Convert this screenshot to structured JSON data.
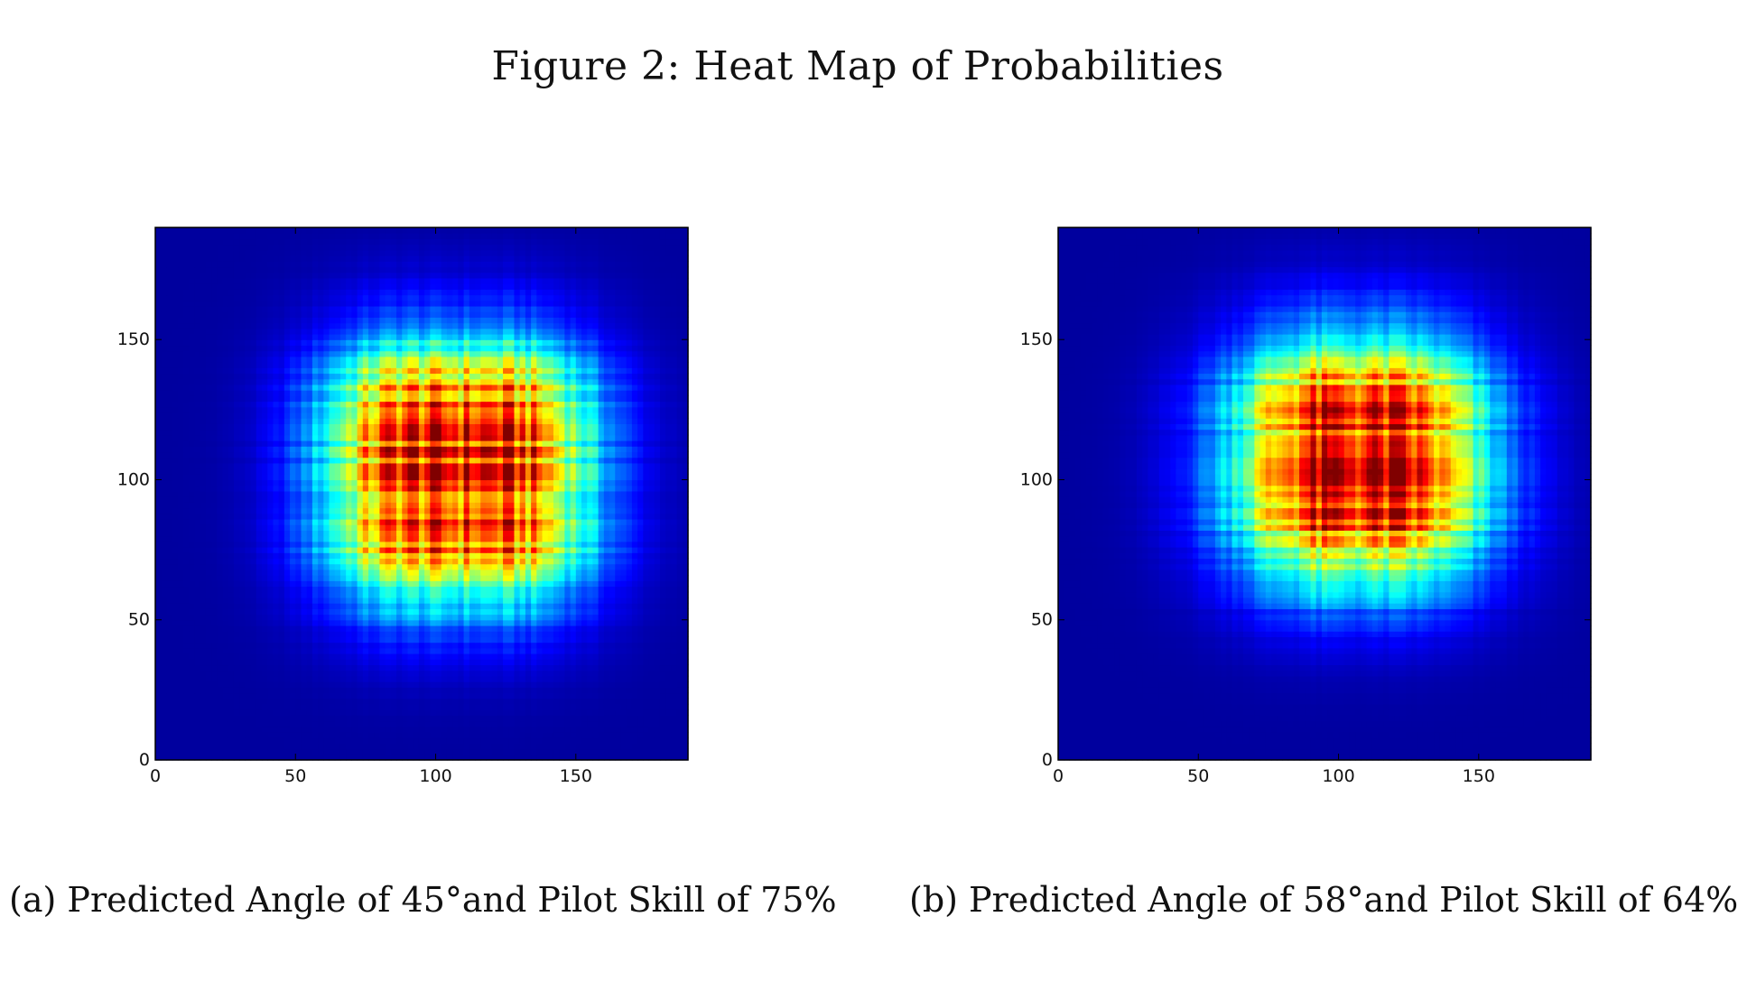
{
  "figure": {
    "title": "Figure 2: Heat Map of Probabilities",
    "captions": [
      "(a) Predicted Angle of 45°and Pilot Skill of 75%",
      "(b) Predicted Angle of 58°and Pilot Skill of 64%"
    ]
  },
  "colors": {
    "colormap": "jet",
    "background": "#000080",
    "peak": "#c00000"
  },
  "chart_data": [
    {
      "type": "heatmap",
      "title": "",
      "xlabel": "",
      "ylabel": "",
      "xlim": [
        0,
        190
      ],
      "ylim": [
        0,
        190
      ],
      "xticks": [
        0,
        50,
        100,
        150
      ],
      "yticks": [
        0,
        50,
        100,
        150
      ],
      "grid": false,
      "colormap": "jet",
      "value_range": [
        0,
        1
      ],
      "distribution": {
        "center_x": 108,
        "center_y": 103,
        "spread_x": 24,
        "spread_y": 24,
        "plateau_half_width_x": 16,
        "plateau_half_width_y": 15,
        "peak": 0.95,
        "background": 0.03
      }
    },
    {
      "type": "heatmap",
      "title": "",
      "xlabel": "",
      "ylabel": "",
      "xlim": [
        0,
        190
      ],
      "ylim": [
        0,
        190
      ],
      "xticks": [
        0,
        50,
        100,
        150
      ],
      "yticks": [
        0,
        50,
        100,
        150
      ],
      "grid": false,
      "colormap": "jet",
      "value_range": [
        0,
        1
      ],
      "distribution": {
        "center_x": 107,
        "center_y": 107,
        "spread_x": 26,
        "spread_y": 24,
        "plateau_half_width_x": 11,
        "plateau_half_width_y": 13,
        "peak": 0.95,
        "background": 0.03
      }
    }
  ]
}
